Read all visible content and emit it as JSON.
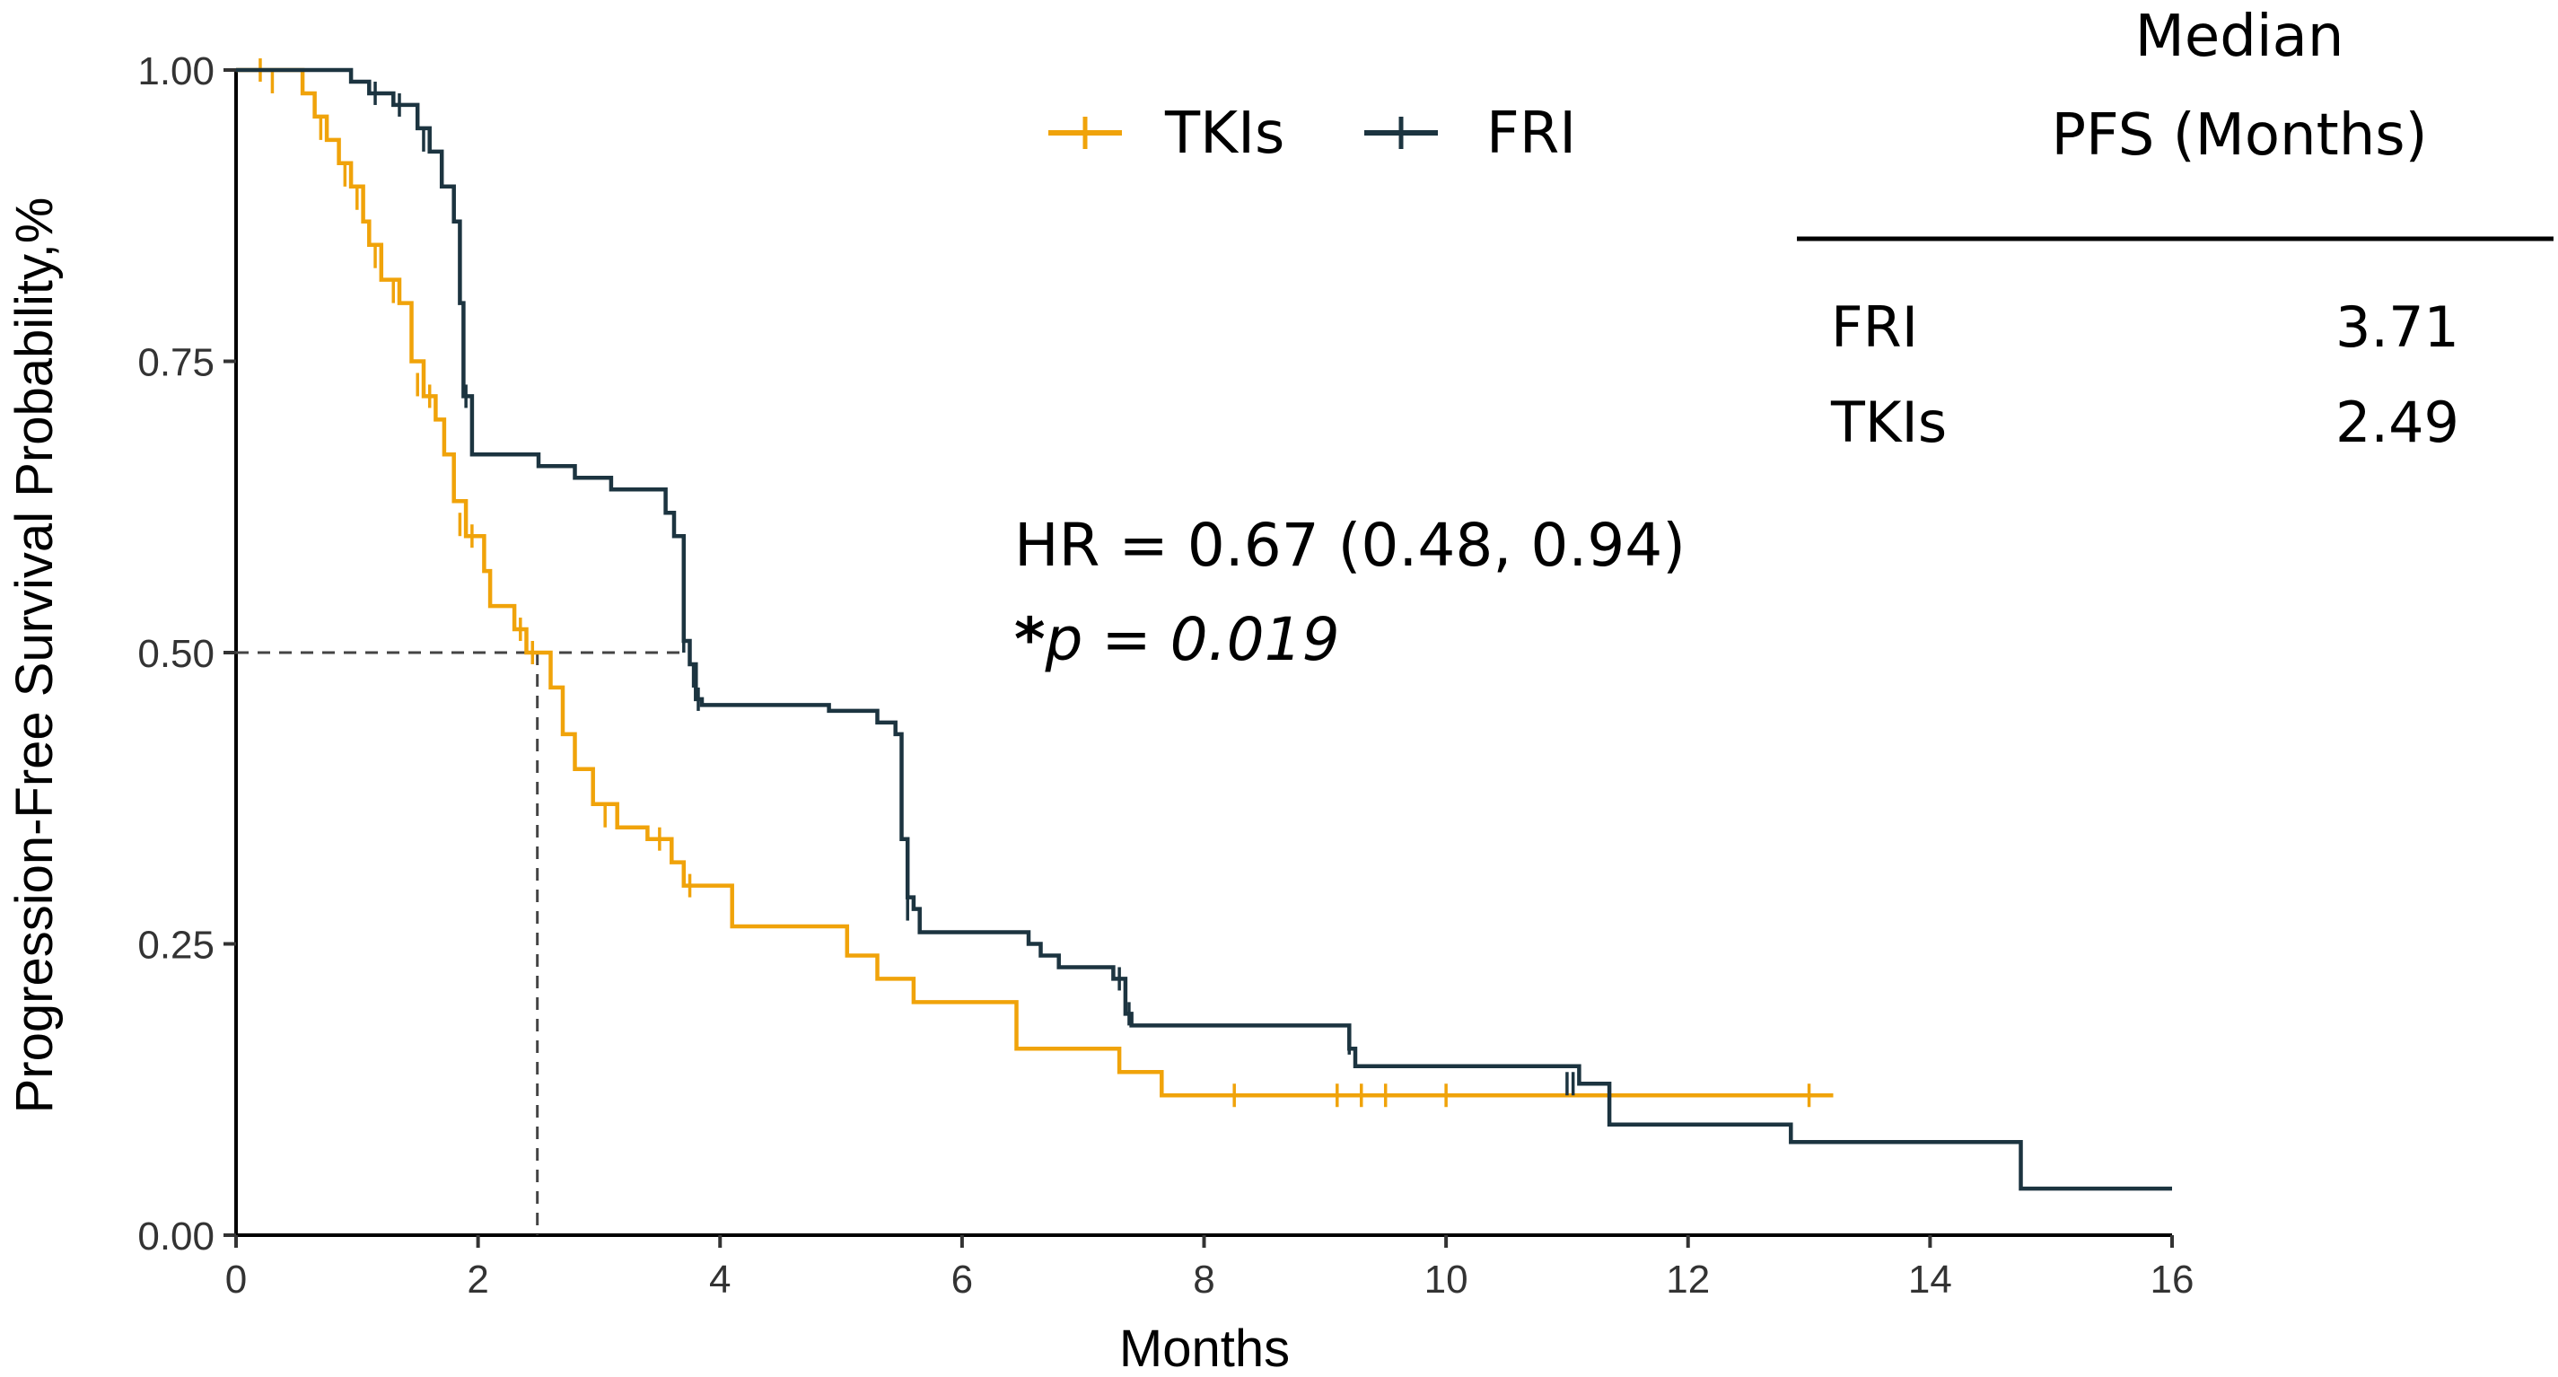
{
  "chart_data": {
    "type": "line",
    "subtype": "kaplan-meier step",
    "xlabel": "Months",
    "ylabel": "Progression-Free Survival Probability,%",
    "xlim": [
      0,
      16
    ],
    "ylim": [
      0,
      1
    ],
    "x_ticks": [
      "0",
      "2",
      "4",
      "6",
      "8",
      "10",
      "12",
      "14",
      "16"
    ],
    "y_ticks": [
      "0.00",
      "0.25",
      "0.50",
      "0.75",
      "1.00"
    ],
    "grid": false,
    "legend_position": "top-center",
    "annotation": {
      "hr": "HR = 0.67 (0.48, 0.94)",
      "p_star": "*",
      "p_letter": "p",
      "p_value": " = 0.019"
    },
    "median_table": {
      "title_line1": "Median",
      "title_line2": "PFS (Months)",
      "rows": [
        {
          "group": "FRI",
          "value": "3.71"
        },
        {
          "group": "TKIs",
          "value": "2.49"
        }
      ]
    },
    "median_reference_lines": {
      "y": 0.5,
      "x_values": [
        2.49,
        3.71
      ]
    },
    "series": [
      {
        "name": "TKIs",
        "color": "#F0A30A",
        "steps": [
          [
            0,
            1.0
          ],
          [
            0.55,
            0.98
          ],
          [
            0.65,
            0.96
          ],
          [
            0.75,
            0.94
          ],
          [
            0.85,
            0.92
          ],
          [
            0.95,
            0.9
          ],
          [
            1.05,
            0.87
          ],
          [
            1.1,
            0.85
          ],
          [
            1.2,
            0.82
          ],
          [
            1.35,
            0.8
          ],
          [
            1.45,
            0.75
          ],
          [
            1.55,
            0.72
          ],
          [
            1.65,
            0.7
          ],
          [
            1.72,
            0.67
          ],
          [
            1.8,
            0.63
          ],
          [
            1.9,
            0.6
          ],
          [
            2.05,
            0.57
          ],
          [
            2.1,
            0.54
          ],
          [
            2.3,
            0.52
          ],
          [
            2.4,
            0.5
          ],
          [
            2.6,
            0.47
          ],
          [
            2.7,
            0.43
          ],
          [
            2.8,
            0.4
          ],
          [
            2.95,
            0.37
          ],
          [
            3.15,
            0.35
          ],
          [
            3.4,
            0.34
          ],
          [
            3.6,
            0.32
          ],
          [
            3.7,
            0.3
          ],
          [
            4.1,
            0.265
          ],
          [
            5.05,
            0.24
          ],
          [
            5.3,
            0.22
          ],
          [
            5.6,
            0.2
          ],
          [
            6.45,
            0.16
          ],
          [
            7.3,
            0.14
          ],
          [
            7.65,
            0.12
          ],
          [
            13.2,
            0.12
          ]
        ],
        "censor_marks": [
          [
            0.2,
            1.0
          ],
          [
            0.3,
            0.99
          ],
          [
            0.7,
            0.95
          ],
          [
            0.9,
            0.91
          ],
          [
            1.0,
            0.89
          ],
          [
            1.15,
            0.84
          ],
          [
            1.3,
            0.81
          ],
          [
            1.5,
            0.73
          ],
          [
            1.6,
            0.72
          ],
          [
            1.85,
            0.61
          ],
          [
            1.95,
            0.6
          ],
          [
            2.35,
            0.52
          ],
          [
            2.45,
            0.5
          ],
          [
            3.05,
            0.36
          ],
          [
            3.5,
            0.34
          ],
          [
            3.75,
            0.3
          ],
          [
            8.25,
            0.12
          ],
          [
            9.1,
            0.12
          ],
          [
            9.3,
            0.12
          ],
          [
            9.5,
            0.12
          ],
          [
            10.0,
            0.12
          ],
          [
            13.0,
            0.12
          ]
        ]
      },
      {
        "name": "FRI",
        "color": "#1C3440",
        "steps": [
          [
            0,
            1.0
          ],
          [
            0.95,
            0.99
          ],
          [
            1.1,
            0.98
          ],
          [
            1.3,
            0.97
          ],
          [
            1.5,
            0.95
          ],
          [
            1.6,
            0.93
          ],
          [
            1.7,
            0.9
          ],
          [
            1.8,
            0.87
          ],
          [
            1.85,
            0.8
          ],
          [
            1.88,
            0.72
          ],
          [
            1.95,
            0.67
          ],
          [
            2.5,
            0.66
          ],
          [
            2.8,
            0.65
          ],
          [
            3.1,
            0.64
          ],
          [
            3.55,
            0.62
          ],
          [
            3.62,
            0.6
          ],
          [
            3.7,
            0.51
          ],
          [
            3.75,
            0.49
          ],
          [
            3.8,
            0.46
          ],
          [
            3.85,
            0.455
          ],
          [
            4.9,
            0.45
          ],
          [
            5.3,
            0.44
          ],
          [
            5.45,
            0.43
          ],
          [
            5.5,
            0.34
          ],
          [
            5.55,
            0.29
          ],
          [
            5.6,
            0.28
          ],
          [
            5.65,
            0.26
          ],
          [
            6.55,
            0.25
          ],
          [
            6.65,
            0.24
          ],
          [
            6.8,
            0.23
          ],
          [
            7.25,
            0.22
          ],
          [
            7.35,
            0.19
          ],
          [
            7.4,
            0.18
          ],
          [
            9.2,
            0.16
          ],
          [
            9.25,
            0.145
          ],
          [
            11.1,
            0.13
          ],
          [
            11.35,
            0.095
          ],
          [
            12.85,
            0.08
          ],
          [
            14.75,
            0.04
          ],
          [
            16.0,
            0.04
          ]
        ],
        "censor_marks": [
          [
            1.15,
            0.98
          ],
          [
            1.35,
            0.97
          ],
          [
            1.55,
            0.94
          ],
          [
            1.85,
            0.81
          ],
          [
            1.9,
            0.72
          ],
          [
            3.7,
            0.51
          ],
          [
            3.78,
            0.48
          ],
          [
            3.82,
            0.46
          ],
          [
            5.55,
            0.28
          ],
          [
            7.3,
            0.22
          ],
          [
            7.38,
            0.19
          ],
          [
            9.2,
            0.165
          ],
          [
            11.0,
            0.13
          ],
          [
            11.05,
            0.13
          ]
        ]
      }
    ]
  }
}
